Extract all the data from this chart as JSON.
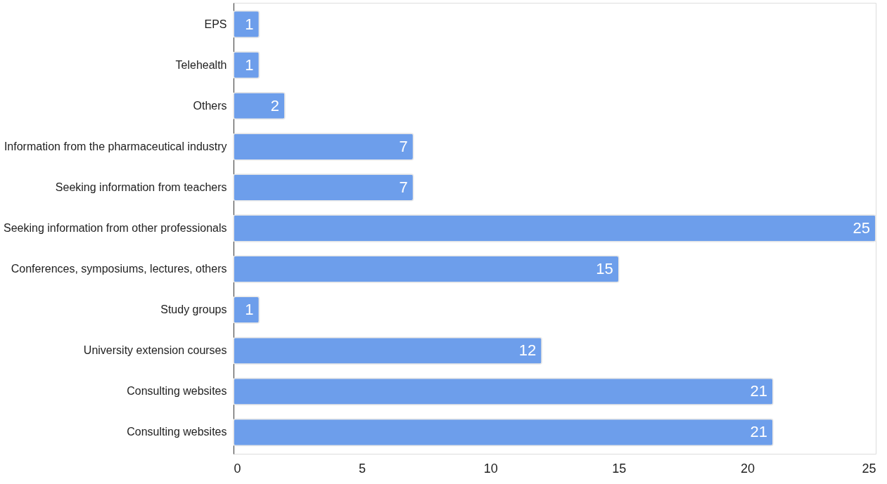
{
  "chart_data": {
    "type": "bar",
    "orientation": "horizontal",
    "categories": [
      "EPS",
      "Telehealth",
      "Others",
      "Information from the pharmaceutical industry",
      "Seeking information from teachers",
      "Seeking information from other professionals",
      "Conferences, symposiums, lectures, others",
      "Study groups",
      "University extension courses",
      "Consulting websites",
      "Consulting websites"
    ],
    "series": [
      {
        "color": "#6d9eeb",
        "values": [
          1,
          1,
          2,
          7,
          7,
          25,
          15,
          1,
          12,
          21,
          21
        ]
      }
    ],
    "xlim": [
      0,
      25
    ],
    "xticks": [
      0,
      5,
      10,
      15,
      20,
      25
    ],
    "data_labels": true,
    "grid": false
  }
}
